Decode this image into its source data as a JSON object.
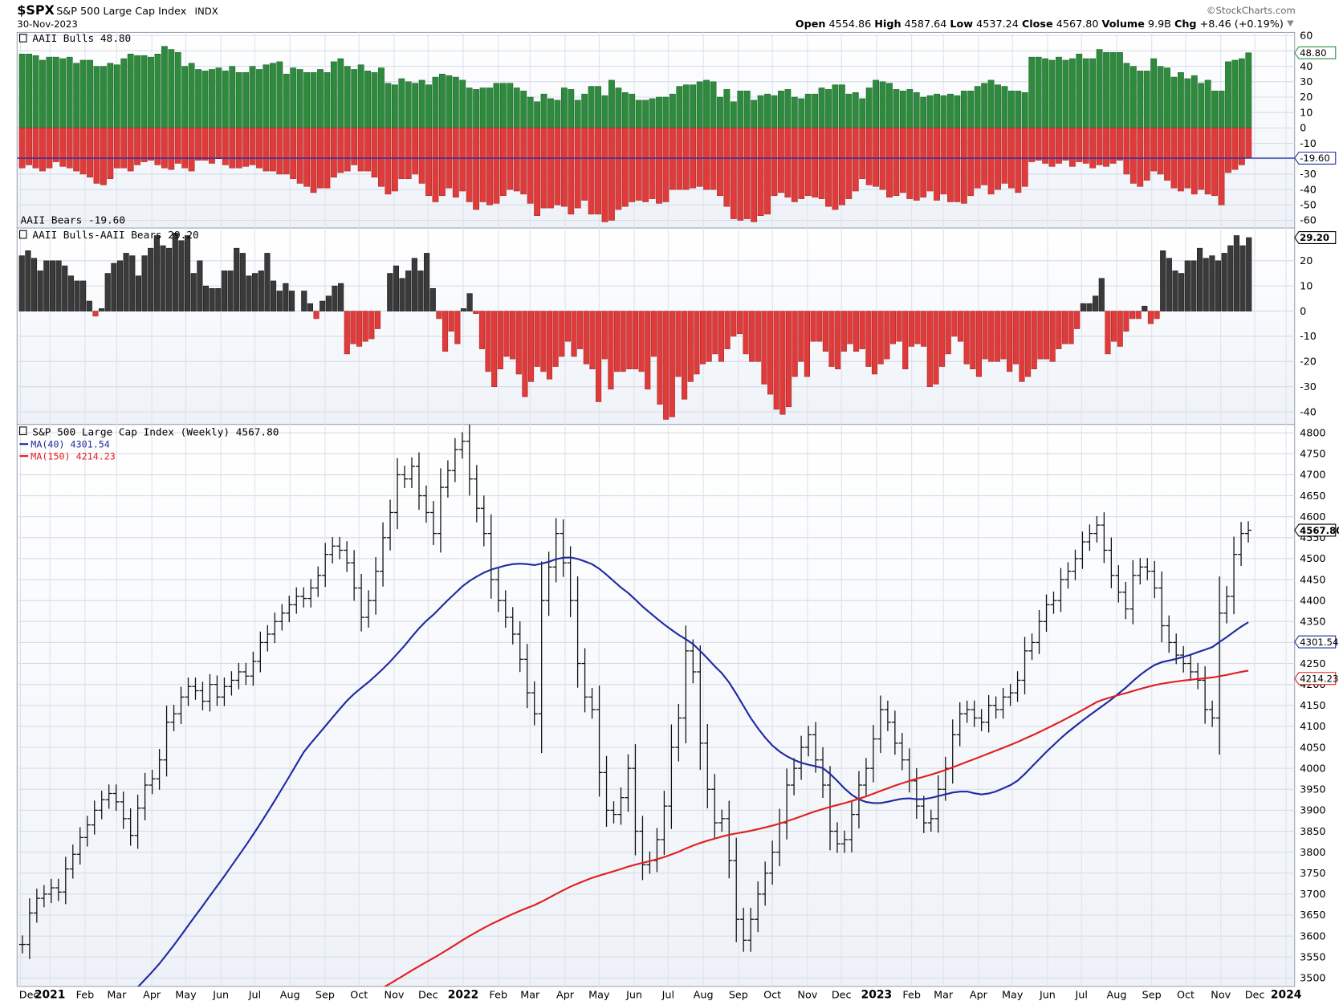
{
  "header": {
    "symbol": "$SPX",
    "name": "S&P 500 Large Cap Index",
    "exchange": "INDX",
    "date": "30-Nov-2023",
    "brand": "©StockCharts.com",
    "quote": {
      "open_label": "Open",
      "open": "4554.86",
      "high_label": "High",
      "high": "4587.64",
      "low_label": "Low",
      "low": "4537.24",
      "close_label": "Close",
      "close": "4567.80",
      "volume_label": "Volume",
      "volume": "9.9B",
      "chg_label": "Chg",
      "chg": "+8.46 (+0.19%)"
    }
  },
  "panels": {
    "sentiment": {
      "bulls_label": "AAII Bulls 48.80",
      "bears_label": "AAII Bears -19.60",
      "bulls_tag": "48.80",
      "bears_tag": "-19.60",
      "colors": {
        "bulls": "#2e8b3e",
        "bears": "#e03b3b",
        "line": "#1f2aa0"
      }
    },
    "spread": {
      "label": "AAII Bulls-AAII Bears 29.20",
      "tag": "29.20",
      "colors": {
        "positive": "#3a3a3a",
        "negative": "#e03b3b"
      }
    },
    "price": {
      "label": "S&P 500 Large Cap Index (Weekly) 4567.80",
      "ma40_label": "MA(40) 4301.54",
      "ma150_label": "MA(150) 4214.23",
      "close_tag": "4567.80",
      "ma40_tag": "4301.54",
      "ma150_tag": "4214.23",
      "colors": {
        "ma40": "#1f2aa0",
        "ma150": "#e02020",
        "bars": "#111111"
      }
    }
  },
  "x_axis": {
    "labels": [
      "Dec",
      "2021",
      "Feb",
      "Mar",
      "Apr",
      "May",
      "Jun",
      "Jul",
      "Aug",
      "Sep",
      "Oct",
      "Nov",
      "Dec",
      "2022",
      "Feb",
      "Mar",
      "Apr",
      "May",
      "Jun",
      "Jul",
      "Aug",
      "Sep",
      "Oct",
      "Nov",
      "Dec",
      "2023",
      "Feb",
      "Mar",
      "Apr",
      "May",
      "Jun",
      "Jul",
      "Aug",
      "Sep",
      "Oct",
      "Nov",
      "Dec",
      "2024"
    ],
    "bold": [
      "2021",
      "2022",
      "2023",
      "2024"
    ]
  },
  "chart_data": [
    {
      "type": "bar",
      "title": "AAII Bulls / AAII Bears",
      "x_range": [
        "2020-12-03",
        "2023-11-30"
      ],
      "ylim": [
        -65,
        62
      ],
      "y_ticks": [
        60,
        50,
        40,
        30,
        20,
        10,
        0,
        -10,
        -20,
        -30,
        -40,
        -50,
        -60
      ],
      "series": [
        {
          "name": "AAII Bulls",
          "values": [
            48,
            48,
            47,
            44,
            46,
            46,
            45,
            46,
            42,
            44,
            44,
            40,
            40,
            42,
            41,
            45,
            48,
            47,
            47,
            46,
            48,
            53,
            51,
            49,
            40,
            42,
            38,
            37,
            38,
            39,
            37,
            40,
            36,
            36,
            40,
            38,
            41,
            42,
            43,
            35,
            39,
            38,
            36,
            36,
            38,
            36,
            43,
            45,
            40,
            38,
            41,
            37,
            36,
            39,
            29,
            28,
            32,
            30,
            29,
            31,
            28,
            33,
            35,
            34,
            33,
            31,
            26,
            25,
            26,
            26,
            29,
            29,
            29,
            26,
            24,
            20,
            17,
            22,
            19,
            18,
            26,
            25,
            18,
            22,
            27,
            27,
            21,
            31,
            26,
            23,
            22,
            18,
            18,
            19,
            20,
            20,
            22,
            27,
            28,
            28,
            30,
            31,
            30,
            20,
            25,
            17,
            24,
            24,
            18,
            21,
            22,
            21,
            24,
            25,
            20,
            19,
            22,
            22,
            26,
            25,
            28,
            28,
            22,
            23,
            19,
            26,
            31,
            30,
            29,
            25,
            24,
            25,
            23,
            20,
            21,
            22,
            21,
            22,
            21,
            24,
            24,
            27,
            29,
            31,
            28,
            27,
            24,
            24,
            23,
            46,
            46,
            45,
            44,
            46,
            44,
            45,
            48,
            45,
            45,
            51,
            49,
            49,
            49,
            42,
            40,
            37,
            37,
            45,
            40,
            39,
            33,
            36,
            32,
            34,
            29,
            31,
            24,
            24,
            43,
            44,
            45,
            48.8
          ]
        },
        {
          "name": "AAII Bears",
          "values": [
            -26,
            -24,
            -26,
            -28,
            -26,
            -22,
            -25,
            -26,
            -28,
            -30,
            -32,
            -36,
            -37,
            -33,
            -26,
            -26,
            -28,
            -24,
            -22,
            -21,
            -24,
            -26,
            -27,
            -23,
            -26,
            -28,
            -21,
            -21,
            -23,
            -20,
            -24,
            -26,
            -26,
            -25,
            -24,
            -26,
            -28,
            -28,
            -30,
            -30,
            -33,
            -36,
            -38,
            -42,
            -39,
            -39,
            -32,
            -29,
            -28,
            -24,
            -28,
            -28,
            -32,
            -38,
            -43,
            -41,
            -33,
            -33,
            -30,
            -36,
            -44,
            -48,
            -44,
            -39,
            -45,
            -41,
            -48,
            -53,
            -48,
            -50,
            -49,
            -44,
            -40,
            -41,
            -43,
            -49,
            -57,
            -52,
            -52,
            -50,
            -51,
            -56,
            -52,
            -47,
            -56,
            -56,
            -61,
            -60,
            -53,
            -51,
            -48,
            -47,
            -48,
            -46,
            -49,
            -48,
            -40,
            -40,
            -40,
            -39,
            -38,
            -40,
            -40,
            -44,
            -51,
            -59,
            -60,
            -59,
            -61,
            -57,
            -56,
            -44,
            -42,
            -45,
            -48,
            -46,
            -44,
            -45,
            -46,
            -51,
            -53,
            -50,
            -46,
            -41,
            -33,
            -37,
            -38,
            -40,
            -45,
            -44,
            -42,
            -46,
            -47,
            -45,
            -41,
            -47,
            -43,
            -48,
            -48,
            -49,
            -44,
            -39,
            -37,
            -43,
            -40,
            -36,
            -39,
            -42,
            -38,
            -22,
            -21,
            -23,
            -25,
            -23,
            -21,
            -25,
            -22,
            -23,
            -26,
            -24,
            -25,
            -23,
            -21,
            -30,
            -36,
            -38,
            -34,
            -28,
            -30,
            -34,
            -39,
            -41,
            -39,
            -43,
            -40,
            -43,
            -44,
            -50,
            -29,
            -27,
            -24,
            -19.6
          ]
        }
      ],
      "reference_line": -19.6
    },
    {
      "type": "bar",
      "title": "AAII Bulls-AAII Bears",
      "x_range": [
        "2020-12-03",
        "2023-11-30"
      ],
      "ylim": [
        -45,
        33
      ],
      "y_ticks": [
        20,
        10,
        0,
        -10,
        -20,
        -30,
        -40
      ],
      "series": [
        {
          "name": "AAII Bulls-AAII Bears",
          "values": [
            22,
            24,
            21,
            16,
            20,
            20,
            20,
            18,
            14,
            12,
            12,
            4,
            -2,
            1,
            15,
            19,
            20,
            23,
            22,
            14,
            22,
            25,
            30,
            26,
            25,
            31,
            28,
            30,
            15,
            20,
            10,
            9,
            9,
            16,
            16,
            25,
            23,
            14,
            15,
            16,
            23,
            12,
            8,
            11,
            8,
            0,
            8,
            3,
            -3,
            4,
            6,
            10,
            11,
            -17,
            -13,
            -14,
            -12,
            -11,
            -7,
            0,
            15,
            18,
            13,
            16,
            21,
            16,
            23,
            9,
            -3,
            -16,
            -8,
            -13,
            1,
            7,
            -1,
            -15,
            -24,
            -30,
            -23,
            -18,
            -19,
            -25,
            -34,
            -28,
            -22,
            -24,
            -27,
            -22,
            -18,
            -12,
            -18,
            -15,
            -21,
            -23,
            -36,
            -19,
            -31,
            -24,
            -24,
            -23,
            -23,
            -24,
            -31,
            -18,
            -37,
            -43,
            -42,
            -26,
            -35,
            -28,
            -25,
            -21,
            -20,
            -17,
            -20,
            -15,
            -10,
            -9,
            -17,
            -20,
            -20,
            -29,
            -33,
            -39,
            -41,
            -38,
            -26,
            -20,
            -26,
            -12,
            -12,
            -16,
            -22,
            -23,
            -16,
            -13,
            -16,
            -15,
            -22,
            -25,
            -21,
            -19,
            -13,
            -12,
            -23,
            -14,
            -13,
            -14,
            -30,
            -29,
            -22,
            -17,
            -10,
            -12,
            -21,
            -23,
            -26,
            -19,
            -20,
            -20,
            -19,
            -24,
            -21,
            -28,
            -26,
            -23,
            -19,
            -19,
            -20,
            -15,
            -13,
            -13,
            -7,
            3,
            3,
            6,
            13,
            -17,
            -12,
            -14,
            -8,
            -3,
            -3,
            2,
            -5,
            -3,
            24,
            21,
            16,
            15,
            20,
            20,
            25,
            21,
            22,
            20,
            23,
            26,
            30,
            26,
            29.2
          ]
        }
      ]
    },
    {
      "type": "line",
      "title": "S&P 500 Large Cap Index (Weekly)",
      "x_range": [
        "2020-12-03",
        "2023-11-30"
      ],
      "ylim": [
        3480,
        4820
      ],
      "y_ticks": [
        4800,
        4750,
        4700,
        4650,
        4600,
        4550,
        4500,
        4450,
        4400,
        4350,
        4300,
        4250,
        4200,
        4150,
        4100,
        4050,
        4000,
        3950,
        3900,
        3850,
        3800,
        3750,
        3700,
        3650,
        3600,
        3550,
        3500
      ],
      "close": [
        3580,
        3655,
        3690,
        3700,
        3715,
        3705,
        3760,
        3795,
        3835,
        3865,
        3900,
        3925,
        3940,
        3920,
        3880,
        3840,
        3905,
        3960,
        3975,
        4020,
        4110,
        4130,
        4170,
        4195,
        4185,
        4160,
        4200,
        4170,
        4195,
        4210,
        4230,
        4220,
        4255,
        4300,
        4320,
        4350,
        4370,
        4390,
        4410,
        4405,
        4430,
        4460,
        4510,
        4530,
        4520,
        4490,
        4430,
        4360,
        4400,
        4470,
        4550,
        4610,
        4700,
        4690,
        4720,
        4650,
        4610,
        4560,
        4670,
        4710,
        4760,
        4780,
        4690,
        4620,
        4560,
        4450,
        4400,
        4360,
        4320,
        4260,
        4180,
        4130,
        4400,
        4480,
        4560,
        4490,
        4400,
        4250,
        4170,
        4140,
        3990,
        3900,
        3890,
        3930,
        4000,
        3850,
        3770,
        3780,
        3830,
        3910,
        4050,
        4120,
        4280,
        4230,
        4060,
        3950,
        3870,
        3880,
        3780,
        3640,
        3590,
        3640,
        3700,
        3750,
        3800,
        3870,
        3960,
        4000,
        4050,
        4080,
        4020,
        3960,
        3850,
        3820,
        3830,
        3890,
        3960,
        4000,
        4070,
        4140,
        4110,
        4060,
        4020,
        3970,
        3910,
        3870,
        3880,
        3950,
        4000,
        4080,
        4130,
        4140,
        4120,
        4110,
        4150,
        4140,
        4170,
        4180,
        4210,
        4280,
        4300,
        4350,
        4390,
        4400,
        4450,
        4470,
        4500,
        4540,
        4560,
        4580,
        4520,
        4460,
        4420,
        4380,
        4460,
        4480,
        4470,
        4430,
        4340,
        4300,
        4270,
        4250,
        4230,
        4210,
        4140,
        4120,
        4370,
        4410,
        4510,
        4560,
        4567.8
      ],
      "series": [
        {
          "name": "MA(40)",
          "last": 4301.54
        },
        {
          "name": "MA(150)",
          "last": 4214.23
        }
      ]
    }
  ]
}
